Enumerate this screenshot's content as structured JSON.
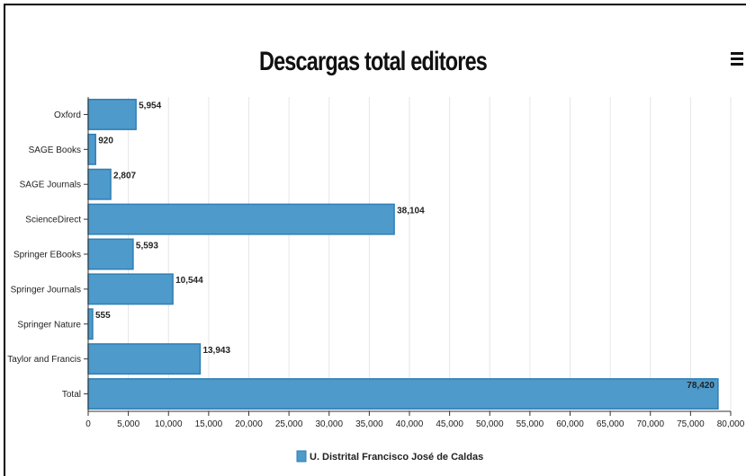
{
  "chart_data": {
    "type": "bar",
    "orientation": "horizontal",
    "title": "Descargas total editores",
    "categories": [
      "Oxford",
      "SAGE Books",
      "SAGE Journals",
      "ScienceDirect",
      "Springer EBooks",
      "Springer Journals",
      "Springer Nature",
      "Taylor and Francis",
      "Total"
    ],
    "series": [
      {
        "name": "U. Distrital Francisco José de Caldas",
        "values": [
          5954,
          920,
          2807,
          38104,
          5593,
          10544,
          555,
          13943,
          78420
        ],
        "value_labels": [
          "5,954",
          "920",
          "2,807",
          "38,104",
          "5,593",
          "10,544",
          "555",
          "13,943",
          "78,420"
        ]
      }
    ],
    "xlim": [
      0,
      80000
    ],
    "x_ticks": [
      0,
      5000,
      10000,
      15000,
      20000,
      25000,
      30000,
      35000,
      40000,
      45000,
      50000,
      55000,
      60000,
      65000,
      70000,
      75000,
      80000
    ],
    "x_tick_labels": [
      "0",
      "5,000",
      "10,000",
      "15,000",
      "20,000",
      "25,000",
      "30,000",
      "35,000",
      "40,000",
      "45,000",
      "50,000",
      "55,000",
      "60,000",
      "65,000",
      "70,000",
      "75,000",
      "80,000"
    ],
    "xlabel": "",
    "ylabel": "",
    "grid": true,
    "legend": "bottom-center",
    "colors": {
      "bar": "#4d9acb",
      "bar_stroke": "#2f7fb5",
      "grid": "#e6e6e6",
      "axis": "#333333"
    }
  }
}
